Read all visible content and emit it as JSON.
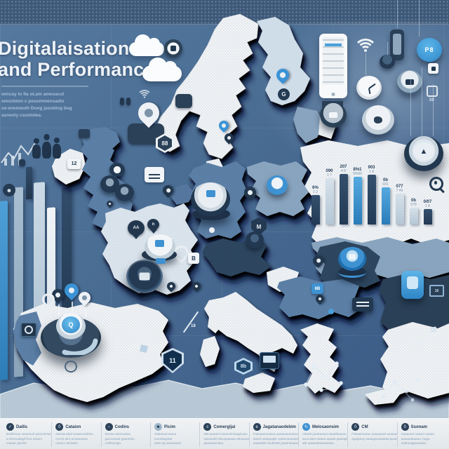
{
  "header": {
    "title_line1": "Digitalaisation",
    "title_line2": "and Performance",
    "subtitle_lines": [
      "wmcay lo fia oLam amesacul",
      "emsnbton c pesommensadio",
      "se-enemeuth Dong jasoblog bug",
      "asneoiy csunlolea."
    ]
  },
  "colors": {
    "accent_blue": "#3f92d2",
    "navy": "#223850",
    "sea": "#4b6e94",
    "country_white": "#f2f4f6",
    "country_blue": "#5d81a8",
    "country_dark": "#2e4660",
    "legend_bg": "#e9edf0"
  },
  "badges": {
    "ireland": "12",
    "hexagon": "88",
    "g_disc": "G",
    "pd_circle": "P8",
    "square_b": "B",
    "shield_m": "M",
    "blue_square": "8B",
    "shield_book": "11",
    "tiny_number": "59",
    "diag_number": "18",
    "monitor_tiny": "10",
    "spain_glyph": "Q",
    "marker_aa": "AA",
    "marker_n": "n",
    "hex_sea": "8b",
    "dial_logo": "▲"
  },
  "chart_data": [
    {
      "type": "bar",
      "title": "",
      "xlabel": "",
      "ylabel": "",
      "categories": [
        "6%",
        "090",
        "207",
        "8%1",
        "903",
        "0b",
        "077",
        "0b",
        "0/07"
      ],
      "values": [
        42,
        66,
        72,
        68,
        71,
        53,
        44,
        24,
        22
      ],
      "sub_labels": [
        "1 2",
        "1 7",
        "4 8",
        "9%60",
        "1 8",
        "031",
        "7 46",
        "079",
        "1 8"
      ],
      "colors": [
        "dark",
        "light",
        "dark",
        "blue",
        "dark",
        "blue",
        "light",
        "light",
        "dark"
      ],
      "legend_position": "none",
      "grid": false,
      "note": "decorative infographic bars with garbled labels, no axes shown"
    },
    {
      "type": "bar",
      "title": "",
      "values": [
        255,
        270,
        46,
        245,
        252,
        230
      ],
      "colors": [
        "blue",
        "steel",
        "dark",
        "light",
        "white",
        "dark"
      ],
      "x": [
        0,
        20,
        37,
        48,
        67,
        88
      ],
      "y": [
        28,
        10,
        -18,
        5,
        42,
        15
      ],
      "w": [
        11,
        13,
        9,
        16,
        12,
        14
      ],
      "note": "left decorative bar cluster, unlabeled"
    }
  ],
  "legend": {
    "columns": [
      {
        "icon": "check-circle-icon",
        "glyph": "✓",
        "icon_color": "dark",
        "title": "Dailis",
        "lines": [
          "Boithimae ssanmod pssomssaol",
          "a-sbomadagif tiva assam",
          "casaar gaoloti"
        ]
      },
      {
        "icon": "zero-circle-icon",
        "glyph": "0",
        "icon_color": "dark",
        "title": "Cataion",
        "lines": [
          "Nessacsital asaamoaiblou,",
          "ciccrit atro arvaaoaraa",
          "cuaocr atmaam."
        ]
      },
      {
        "icon": "minus-circle-icon",
        "glyph": "–",
        "icon_color": "dark",
        "title": "Codins",
        "lines": [
          "Bevaa attoicaaiau",
          "gaccioasal gaaotottu",
          "cuthiwruga"
        ]
      },
      {
        "icon": "person-circle-icon",
        "glyph": "☻",
        "icon_color": "light",
        "title": "Picim",
        "lines": [
          "Otalaioamaaua",
          "tvaotdagatta",
          "taotr ag aaaoaaam"
        ]
      },
      {
        "icon": "spark-circle-icon",
        "glyph": "c",
        "icon_color": "dark",
        "title": "Comergijai",
        "lines": [
          "Mitcaaataol aaaonttniaaglcaau",
          "waaaotittl dttcajaataaa attuaoaotta,",
          "gaotaaamaau"
        ]
      },
      {
        "icon": "e-circle-icon",
        "glyph": "e",
        "icon_color": "dark",
        "title": "Jagatanaodebim",
        "lines": [
          "Fataaaasoaaua aaataaaotaaau",
          "tatuttt utaaguajts caaamaaaatat",
          "aaaaatttrt tauttstatt jaaamaaaaam"
        ]
      },
      {
        "icon": "refresh-circle-icon",
        "glyph": "↻",
        "icon_color": "blue",
        "title": "Melosaonsim",
        "lines": [
          "Atbattt jaaotaaaot aaaaltaaaau",
          "aout attat aataat aaaatt gaataglu",
          "attr aaaaattaaaaataau."
        ]
      },
      {
        "icon": "zero-circle-icon",
        "glyph": "0",
        "icon_color": "dark",
        "title": "CM",
        "lines": [
          "Fttaaamaaau aaaaaaatt aaaaaam au",
          "agajaacg aaaagaraaaattacjaaaaaO"
        ]
      },
      {
        "icon": "o-circle-icon",
        "glyph": "0",
        "icon_color": "dark",
        "title": "Ssonam",
        "lines": [
          "Saaaaott caaact uaaaa",
          "aaaaaattaaau, baga",
          "uatttaotgjaaaaata"
        ]
      }
    ]
  }
}
